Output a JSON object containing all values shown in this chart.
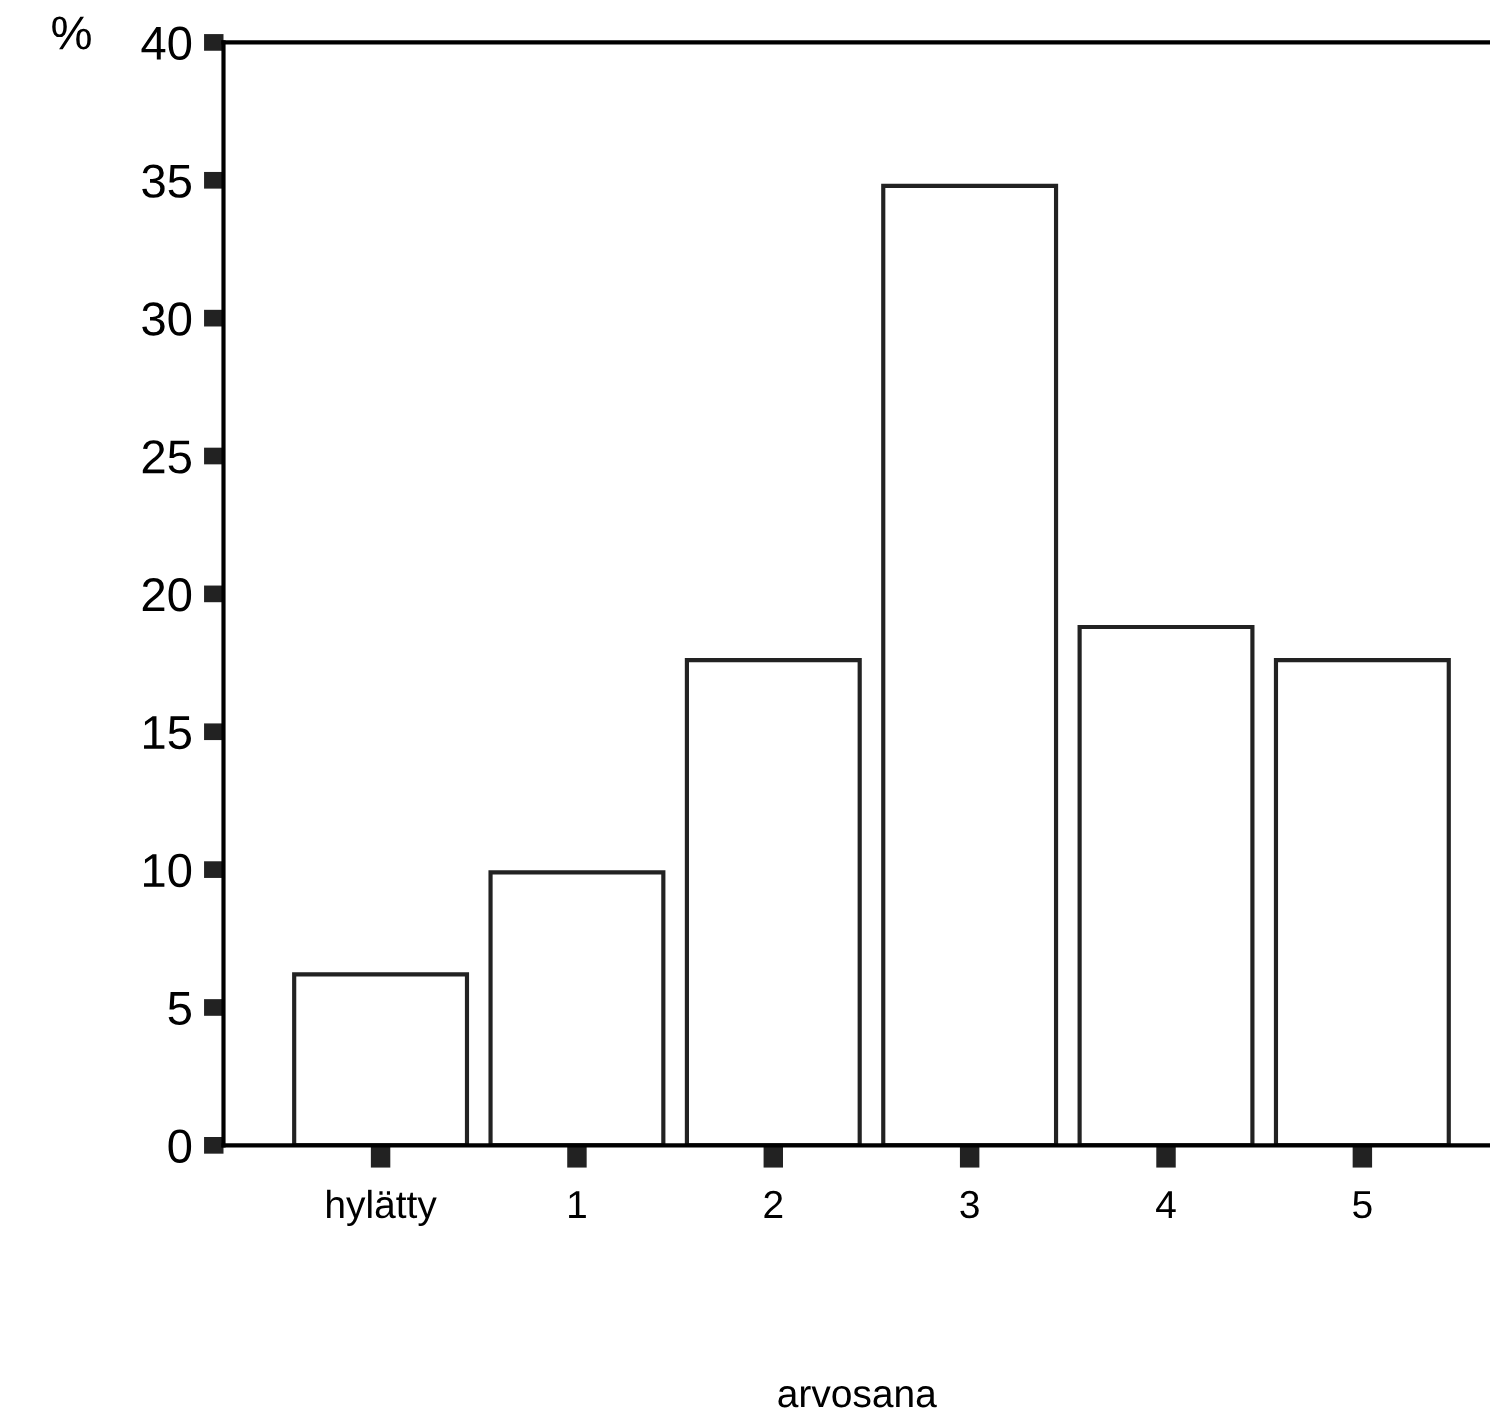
{
  "chart_data": {
    "type": "bar",
    "ylabel": "%",
    "xlabel": "arvosana",
    "categories": [
      "hylätty",
      "1",
      "2",
      "3",
      "4",
      "5"
    ],
    "values": [
      6.2,
      9.9,
      17.6,
      34.8,
      18.8,
      17.6
    ],
    "color": "#ffffff",
    "ylim": [
      0,
      40
    ],
    "yticks": [
      0,
      5,
      10,
      15,
      20,
      25,
      30,
      35,
      40
    ],
    "grid": false
  }
}
